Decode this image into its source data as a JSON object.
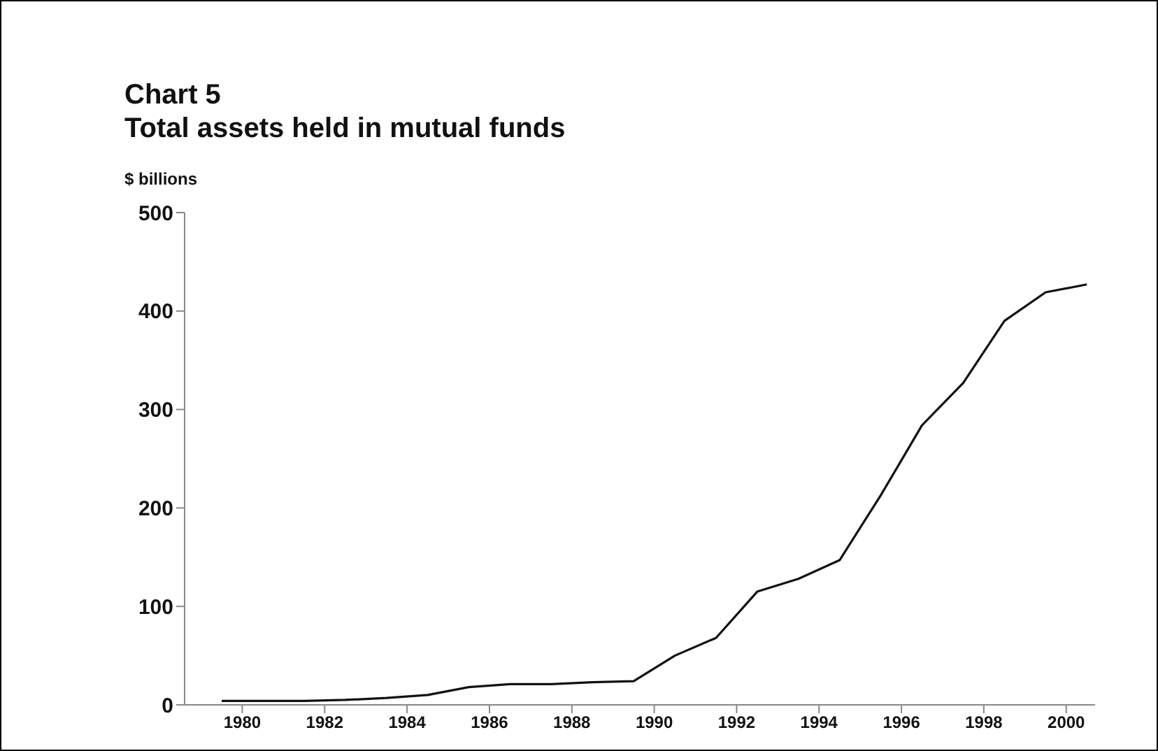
{
  "chart_data": {
    "type": "line",
    "title": "Chart 5",
    "subtitle": "Total assets held in mutual funds",
    "ylabel": "$ billions",
    "x": [
      1979.5,
      1980.5,
      1981.5,
      1982.5,
      1983.5,
      1984.5,
      1985.5,
      1986.5,
      1987.5,
      1988.5,
      1989.5,
      1990.5,
      1991.5,
      1992.5,
      1993.5,
      1994.5,
      1995.5,
      1996.5,
      1997.5,
      1998.5,
      1999.5,
      2000.5
    ],
    "series": [
      {
        "color": "#111111",
        "values": [
          4,
          4,
          4,
          5,
          7,
          10,
          18,
          21,
          21,
          23,
          24,
          50,
          68,
          115,
          128,
          147,
          213,
          284,
          327,
          390,
          419,
          427
        ]
      }
    ],
    "xlim": [
      1978.6,
      2000.7
    ],
    "xticks": [
      1980,
      1982,
      1984,
      1986,
      1988,
      1990,
      1992,
      1994,
      1996,
      1998,
      2000
    ],
    "ylim": [
      0,
      500
    ],
    "yticks": [
      0,
      100,
      200,
      300,
      400,
      500
    ],
    "grid": false,
    "legend": false,
    "marker": "none",
    "line_style": "solid"
  }
}
